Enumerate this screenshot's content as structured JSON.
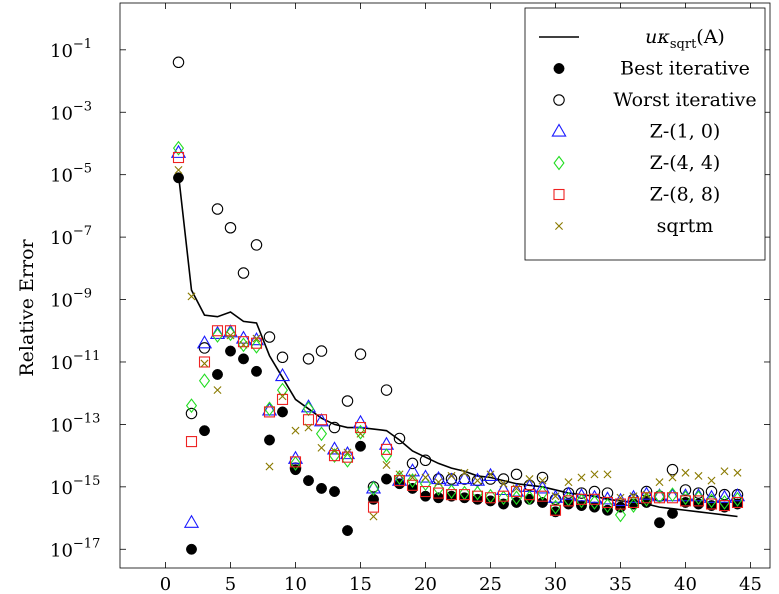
{
  "chart_data": {
    "type": "scatter",
    "title": "",
    "xlabel": "",
    "ylabel": "Relative Error",
    "xlim": [
      -3.5,
      46.5
    ],
    "ylim": [
      -17.6,
      0.5
    ],
    "y_scale": "log10",
    "grid": false,
    "legend_position": "top-right",
    "x_ticks": [
      0,
      5,
      10,
      15,
      20,
      25,
      30,
      35,
      40,
      45
    ],
    "x_tick_labels": [
      "0",
      "5",
      "10",
      "15",
      "20",
      "25",
      "30",
      "35",
      "40",
      "45"
    ],
    "y_ticks": [
      -1,
      -3,
      -5,
      -7,
      -9,
      -11,
      -13,
      -15,
      -17
    ],
    "y_tick_labels": [
      "10",
      "10",
      "10",
      "10",
      "10",
      "10",
      "10",
      "10",
      "10"
    ],
    "y_tick_exponents": [
      "−1",
      "−3",
      "−5",
      "−7",
      "−9",
      "−11",
      "−13",
      "−15",
      "−17"
    ],
    "series": [
      {
        "name": "uκsqrt(A)",
        "legend_label": "uκ",
        "legend_subscript": "sqrt",
        "legend_suffix": "(A)",
        "marker": "line",
        "color": "#000000",
        "x": [
          1,
          2,
          3,
          4,
          5,
          6,
          7,
          8,
          9,
          10,
          11,
          12,
          13,
          14,
          15,
          16,
          17,
          18,
          19,
          20,
          21,
          22,
          23,
          24,
          25,
          26,
          27,
          28,
          29,
          30,
          31,
          32,
          33,
          34,
          35,
          36,
          37,
          38,
          39,
          40,
          41,
          42,
          43,
          44
        ],
        "y_log10": [
          -5.0,
          -8.7,
          -9.5,
          -9.55,
          -9.4,
          -9.7,
          -9.75,
          -10.8,
          -11.5,
          -12.2,
          -12.5,
          -12.8,
          -13.0,
          -13.1,
          -13.1,
          -13.15,
          -13.2,
          -13.5,
          -13.85,
          -14.05,
          -14.25,
          -14.4,
          -14.5,
          -14.65,
          -14.7,
          -14.8,
          -14.9,
          -14.95,
          -15.0,
          -15.1,
          -15.2,
          -15.25,
          -15.3,
          -15.4,
          -15.45,
          -15.5,
          -15.55,
          -15.65,
          -15.7,
          -15.75,
          -15.8,
          -15.85,
          -15.9,
          -15.95
        ]
      },
      {
        "name": "Best iterative",
        "marker": "filled-circle",
        "color": "#000000",
        "x": [
          1,
          2,
          3,
          4,
          5,
          6,
          7,
          8,
          9,
          10,
          11,
          12,
          13,
          14,
          15,
          16,
          17,
          18,
          19,
          20,
          21,
          22,
          23,
          24,
          25,
          26,
          27,
          28,
          29,
          30,
          31,
          32,
          33,
          34,
          35,
          36,
          37,
          38,
          39,
          40,
          41,
          42,
          43,
          44
        ],
        "y_log10": [
          -5.1,
          -17.0,
          -13.2,
          -11.4,
          -10.65,
          -10.9,
          -11.3,
          -13.5,
          -12.6,
          -14.45,
          -14.8,
          -15.05,
          -15.15,
          -16.4,
          -13.7,
          -15.4,
          -14.75,
          -14.9,
          -15.05,
          -15.3,
          -15.35,
          -15.3,
          -15.35,
          -15.4,
          -15.45,
          -15.55,
          -15.5,
          -15.4,
          -15.5,
          -15.8,
          -15.55,
          -15.6,
          -15.65,
          -15.75,
          -15.65,
          -15.55,
          -15.5,
          -16.15,
          -15.85,
          -15.5,
          -15.55,
          -15.6,
          -15.65,
          -15.55
        ]
      },
      {
        "name": "Worst iterative",
        "marker": "open-circle",
        "color": "#000000",
        "x": [
          1,
          2,
          3,
          4,
          5,
          6,
          7,
          8,
          9,
          10,
          11,
          12,
          13,
          14,
          15,
          16,
          17,
          18,
          19,
          20,
          21,
          22,
          23,
          24,
          25,
          26,
          27,
          28,
          29,
          30,
          31,
          32,
          33,
          34,
          35,
          36,
          37,
          38,
          39,
          40,
          41,
          42,
          43,
          44
        ],
        "y_log10": [
          -1.4,
          -12.65,
          -10.55,
          -6.1,
          -6.7,
          -8.15,
          -7.25,
          -10.2,
          -10.85,
          -14.4,
          -10.9,
          -10.65,
          -13.1,
          -12.25,
          -10.75,
          -15.0,
          -11.9,
          -13.45,
          -14.25,
          -14.15,
          -14.75,
          -14.75,
          -14.75,
          -14.8,
          -14.75,
          -14.75,
          -14.6,
          -14.95,
          -14.7,
          -15.4,
          -15.2,
          -15.2,
          -15.15,
          -15.2,
          -15.55,
          -15.4,
          -15.15,
          -15.3,
          -14.45,
          -15.1,
          -15.2,
          -15.15,
          -15.25,
          -15.25
        ]
      },
      {
        "name": "Z-(1,0)",
        "legend_label": "Z-(1, 0)",
        "marker": "triangle",
        "color": "#1a1aff",
        "x": [
          1,
          2,
          3,
          4,
          5,
          6,
          7,
          8,
          9,
          10,
          11,
          12,
          13,
          14,
          15,
          16,
          17,
          18,
          19,
          20,
          21,
          22,
          23,
          24,
          25,
          26,
          27,
          28,
          29,
          30,
          31,
          32,
          33,
          34,
          35,
          36,
          37,
          38,
          39,
          40,
          41,
          42,
          43,
          44
        ],
        "y_log10": [
          -4.3,
          -16.15,
          -10.4,
          -10.1,
          -10.05,
          -10.25,
          -10.3,
          -12.55,
          -11.45,
          -14.1,
          -12.45,
          -12.9,
          -13.8,
          -13.95,
          -12.95,
          -15.05,
          -13.65,
          -14.8,
          -14.5,
          -14.7,
          -14.75,
          -14.8,
          -14.75,
          -14.8,
          -14.65,
          -15.1,
          -15.15,
          -15.0,
          -15.05,
          -15.35,
          -15.25,
          -15.3,
          -15.35,
          -15.4,
          -15.45,
          -15.35,
          -15.25,
          -15.3,
          -15.3,
          -15.3,
          -15.3,
          -15.35,
          -15.35,
          -15.3
        ]
      },
      {
        "name": "Z-(4,4)",
        "legend_label": "Z-(4, 4)",
        "marker": "diamond",
        "color": "#22dd22",
        "x": [
          1,
          2,
          3,
          4,
          5,
          6,
          7,
          8,
          9,
          10,
          11,
          12,
          13,
          14,
          15,
          16,
          17,
          18,
          19,
          20,
          21,
          22,
          23,
          24,
          25,
          26,
          27,
          28,
          29,
          30,
          31,
          32,
          33,
          34,
          35,
          36,
          37,
          38,
          39,
          40,
          41,
          42,
          43,
          44
        ],
        "y_log10": [
          -4.15,
          -12.4,
          -11.6,
          -10.15,
          -10.1,
          -10.45,
          -10.5,
          -12.5,
          -11.9,
          -14.25,
          -12.5,
          -13.3,
          -14.0,
          -14.15,
          -13.25,
          -15.05,
          -14.0,
          -14.7,
          -14.8,
          -14.9,
          -15.05,
          -15.15,
          -15.2,
          -15.2,
          -15.3,
          -15.35,
          -15.35,
          -15.35,
          -15.2,
          -15.65,
          -15.4,
          -15.45,
          -15.5,
          -15.6,
          -15.9,
          -15.6,
          -15.4,
          -15.3,
          -15.25,
          -15.35,
          -15.35,
          -15.45,
          -15.5,
          -15.4
        ]
      },
      {
        "name": "Z-(8,8)",
        "legend_label": "Z-(8, 8)",
        "marker": "square",
        "color": "#ee2222",
        "x": [
          1,
          2,
          3,
          4,
          5,
          6,
          7,
          8,
          9,
          10,
          11,
          12,
          13,
          14,
          15,
          16,
          17,
          18,
          19,
          20,
          21,
          22,
          23,
          24,
          25,
          26,
          27,
          28,
          29,
          30,
          31,
          32,
          33,
          34,
          35,
          36,
          37,
          38,
          39,
          40,
          41,
          42,
          43,
          44
        ],
        "y_log10": [
          -4.45,
          -13.55,
          -11.0,
          -10.0,
          -10.0,
          -10.35,
          -10.4,
          -12.6,
          -12.2,
          -14.2,
          -12.85,
          -12.85,
          -14.0,
          -14.05,
          -13.1,
          -15.65,
          -13.8,
          -14.8,
          -14.95,
          -15.15,
          -15.2,
          -15.25,
          -15.25,
          -15.3,
          -15.35,
          -15.3,
          -15.15,
          -15.25,
          -15.3,
          -15.75,
          -15.45,
          -15.4,
          -15.4,
          -15.5,
          -15.55,
          -15.5,
          -15.35,
          -15.35,
          -15.35,
          -15.45,
          -15.45,
          -15.55,
          -15.6,
          -15.5
        ]
      },
      {
        "name": "sqrtm",
        "marker": "cross",
        "color": "#8a7a00",
        "x": [
          1,
          2,
          3,
          4,
          5,
          6,
          7,
          8,
          9,
          10,
          11,
          12,
          13,
          14,
          15,
          16,
          17,
          18,
          19,
          20,
          21,
          22,
          23,
          24,
          25,
          26,
          27,
          28,
          29,
          30,
          31,
          32,
          33,
          34,
          35,
          36,
          37,
          38,
          39,
          40,
          41,
          42,
          43,
          44
        ],
        "y_log10": [
          -4.85,
          -8.9,
          -11.05,
          -11.9,
          -10.15,
          -10.45,
          -10.25,
          -14.35,
          -12.1,
          -13.2,
          -13.1,
          -13.75,
          -13.85,
          -13.9,
          -13.3,
          -15.95,
          -14.3,
          -14.6,
          -14.7,
          -14.7,
          -14.85,
          -14.65,
          -14.55,
          -14.8,
          -14.6,
          -14.9,
          -15.05,
          -14.75,
          -14.8,
          -15.3,
          -14.85,
          -14.7,
          -14.6,
          -14.6,
          -15.35,
          -15.3,
          -15.25,
          -14.85,
          -14.7,
          -14.55,
          -14.65,
          -14.8,
          -14.5,
          -14.55
        ]
      }
    ]
  }
}
